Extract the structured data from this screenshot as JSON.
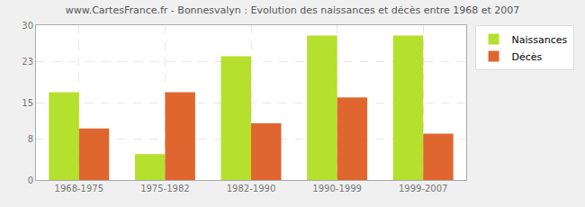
{
  "chart_data": {
    "type": "bar",
    "title": "www.CartesFrance.fr - Bonnesvalyn : Evolution des naissances et décès entre 1968 et 2007",
    "categories": [
      "1968-1975",
      "1975-1982",
      "1982-1990",
      "1990-1999",
      "1999-2007"
    ],
    "series": [
      {
        "name": "Naissances",
        "color": "#b5e02e",
        "values": [
          17,
          5,
          24,
          28,
          28
        ]
      },
      {
        "name": "Décès",
        "color": "#e0662f",
        "values": [
          10,
          17,
          11,
          16,
          9
        ]
      }
    ],
    "ylim": [
      0,
      30
    ],
    "yticks": [
      0,
      8,
      15,
      23,
      30
    ],
    "grid": true,
    "legend": "top-right"
  }
}
